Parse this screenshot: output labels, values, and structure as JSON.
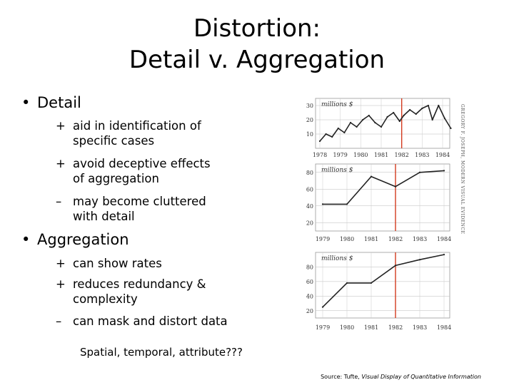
{
  "title": {
    "line1": "Distortion:",
    "line2": "Detail v. Aggregation"
  },
  "detail": {
    "heading": "Detail",
    "points": [
      {
        "mark": "+",
        "lines": [
          "aid in identification of",
          "specific cases"
        ]
      },
      {
        "mark": "+",
        "lines": [
          "avoid deceptive effects",
          "of aggregation"
        ]
      },
      {
        "mark": "–",
        "lines": [
          "may become cluttered",
          "with detail"
        ]
      }
    ]
  },
  "aggregation": {
    "heading": "Aggregation",
    "points": [
      {
        "mark": "+",
        "lines": [
          "can show rates"
        ]
      },
      {
        "mark": "+",
        "lines": [
          "reduces redundancy &",
          "complexity"
        ]
      },
      {
        "mark": "–",
        "lines": [
          "can mask and distort data"
        ]
      }
    ]
  },
  "footer": "Spatial, temporal, attribute???",
  "source": {
    "prefix": "Source: Tufte, ",
    "title": "Visual Display of Quantitative Information"
  },
  "figure_vertical_text": "GREGORY F. JOSEPH, MODERN VISUAL EVIDENCE",
  "chart_data": [
    {
      "type": "line",
      "unit_label": "millions $",
      "x_labels": [
        "1978",
        "1979",
        "1980",
        "1981",
        "1982",
        "1983",
        "1984"
      ],
      "y_ticks": [
        10,
        20,
        30
      ],
      "ylim": [
        0,
        35
      ],
      "x": [
        1978.0,
        1978.3,
        1978.6,
        1978.9,
        1979.2,
        1979.5,
        1979.8,
        1980.1,
        1980.4,
        1980.7,
        1981.0,
        1981.3,
        1981.6,
        1981.9,
        1982.1,
        1982.4,
        1982.7,
        1983.0,
        1983.3,
        1983.5,
        1983.8,
        1984.1,
        1984.4
      ],
      "y": [
        5,
        10,
        8,
        14,
        11,
        18,
        15,
        20,
        23,
        18,
        15,
        22,
        25,
        19,
        23,
        27,
        24,
        28,
        30,
        20,
        30,
        21,
        14
      ],
      "reference_x": 1982
    },
    {
      "type": "line",
      "unit_label": "millions $",
      "x_labels": [
        "1979",
        "1980",
        "1981",
        "1982",
        "1983",
        "1984"
      ],
      "y_ticks": [
        20,
        40,
        60,
        80
      ],
      "ylim": [
        10,
        90
      ],
      "x": [
        1979,
        1980,
        1981,
        1982,
        1983,
        1984
      ],
      "y": [
        42,
        42,
        75,
        63,
        80,
        82
      ],
      "reference_x": 1982
    },
    {
      "type": "line",
      "unit_label": "millions $",
      "x_labels": [
        "1979",
        "1980",
        "1981",
        "1982",
        "1983",
        "1984"
      ],
      "y_ticks": [
        20,
        40,
        60,
        80
      ],
      "ylim": [
        10,
        100
      ],
      "x": [
        1979,
        1980,
        1981,
        1982,
        1983,
        1984
      ],
      "y": [
        25,
        58,
        58,
        82,
        90,
        97
      ],
      "reference_x": 1982
    }
  ]
}
